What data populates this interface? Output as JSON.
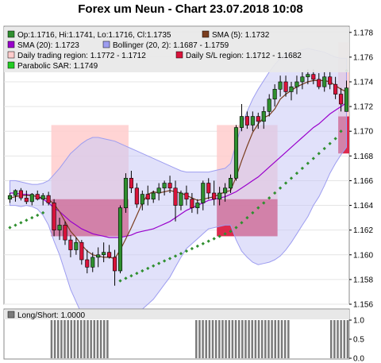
{
  "title": "Forex um Neun - Chart 23.07.2018 10:08",
  "colors": {
    "up_candle": "#2f8f2f",
    "down_candle": "#d9133a",
    "sma5": "#7a3e1f",
    "sma20": "#9900cc",
    "bollinger_fill": "#c8c8f5",
    "bollinger_stroke": "#9d9df0",
    "daily_region": "#ffcccc",
    "sl_region": "#d9133a",
    "sar": "#2f8f2f",
    "panel_bg": "#e8e8e8",
    "bar_gray": "#7a7a7a"
  },
  "legend": {
    "ohlc": "Op:1.1716, Hi:1.1741, Lo:1.1716, Cl:1.1735",
    "sma5": "SMA (5): 1.1732",
    "sma20": "SMA (20): 1.1723",
    "bollinger": "Bollinger (20, 2): 1.1687 - 1.1759",
    "daily_region": "Daily trading region: 1.1772 - 1.1712",
    "sl_region": "Daily S/L region: 1.1712 - 1.1682",
    "sar": "Parabolic SAR: 1.1749"
  },
  "lower_legend": "Long/Short: 1.0000",
  "chart_data": [
    {
      "type": "candlestick",
      "title": "Forex um Neun - Chart 23.07.2018 10:08",
      "ylim": [
        1.156,
        1.1785
      ],
      "y_ticks": [
        "1.178",
        "1.176",
        "1.174",
        "1.172",
        "1.170",
        "1.168",
        "1.166",
        "1.164",
        "1.162",
        "1.160",
        "1.158",
        "1.156"
      ],
      "candles": [
        {
          "o": 1.1645,
          "h": 1.165,
          "l": 1.1642,
          "c": 1.1648
        },
        {
          "o": 1.1648,
          "h": 1.1653,
          "l": 1.1643,
          "c": 1.1652
        },
        {
          "o": 1.1652,
          "h": 1.1654,
          "l": 1.1644,
          "c": 1.1646
        },
        {
          "o": 1.1646,
          "h": 1.1652,
          "l": 1.1641,
          "c": 1.1643
        },
        {
          "o": 1.1643,
          "h": 1.165,
          "l": 1.164,
          "c": 1.1649
        },
        {
          "o": 1.1649,
          "h": 1.1652,
          "l": 1.1644,
          "c": 1.1645
        },
        {
          "o": 1.1645,
          "h": 1.165,
          "l": 1.164,
          "c": 1.1648
        },
        {
          "o": 1.1648,
          "h": 1.1651,
          "l": 1.164,
          "c": 1.1642
        },
        {
          "o": 1.1642,
          "h": 1.1645,
          "l": 1.1615,
          "c": 1.162
        },
        {
          "o": 1.162,
          "h": 1.163,
          "l": 1.1612,
          "c": 1.1624
        },
        {
          "o": 1.1624,
          "h": 1.1627,
          "l": 1.1608,
          "c": 1.1612
        },
        {
          "o": 1.1612,
          "h": 1.1616,
          "l": 1.1598,
          "c": 1.1604
        },
        {
          "o": 1.1604,
          "h": 1.1614,
          "l": 1.16,
          "c": 1.161
        },
        {
          "o": 1.161,
          "h": 1.1612,
          "l": 1.1592,
          "c": 1.1596
        },
        {
          "o": 1.1596,
          "h": 1.1604,
          "l": 1.1585,
          "c": 1.159
        },
        {
          "o": 1.159,
          "h": 1.1602,
          "l": 1.1586,
          "c": 1.1598
        },
        {
          "o": 1.1598,
          "h": 1.1606,
          "l": 1.159,
          "c": 1.16
        },
        {
          "o": 1.16,
          "h": 1.161,
          "l": 1.1594,
          "c": 1.1602
        },
        {
          "o": 1.1602,
          "h": 1.1608,
          "l": 1.1597,
          "c": 1.1598
        },
        {
          "o": 1.1598,
          "h": 1.1604,
          "l": 1.1575,
          "c": 1.1587
        },
        {
          "o": 1.1587,
          "h": 1.164,
          "l": 1.1585,
          "c": 1.1638
        },
        {
          "o": 1.1638,
          "h": 1.1666,
          "l": 1.1634,
          "c": 1.1662
        },
        {
          "o": 1.1662,
          "h": 1.1668,
          "l": 1.165,
          "c": 1.1654
        },
        {
          "o": 1.1654,
          "h": 1.1658,
          "l": 1.1638,
          "c": 1.1641
        },
        {
          "o": 1.1641,
          "h": 1.1652,
          "l": 1.1636,
          "c": 1.1649
        },
        {
          "o": 1.1649,
          "h": 1.1656,
          "l": 1.164,
          "c": 1.1645
        },
        {
          "o": 1.1645,
          "h": 1.1652,
          "l": 1.1642,
          "c": 1.165
        },
        {
          "o": 1.165,
          "h": 1.1658,
          "l": 1.1644,
          "c": 1.1654
        },
        {
          "o": 1.1654,
          "h": 1.166,
          "l": 1.1648,
          "c": 1.1658
        },
        {
          "o": 1.1658,
          "h": 1.1664,
          "l": 1.165,
          "c": 1.1654
        },
        {
          "o": 1.1654,
          "h": 1.166,
          "l": 1.1627,
          "c": 1.164
        },
        {
          "o": 1.164,
          "h": 1.1652,
          "l": 1.1636,
          "c": 1.165
        },
        {
          "o": 1.165,
          "h": 1.1656,
          "l": 1.164,
          "c": 1.1645
        },
        {
          "o": 1.1645,
          "h": 1.165,
          "l": 1.1634,
          "c": 1.1638
        },
        {
          "o": 1.1638,
          "h": 1.1645,
          "l": 1.1633,
          "c": 1.1642
        },
        {
          "o": 1.1642,
          "h": 1.166,
          "l": 1.1636,
          "c": 1.1658
        },
        {
          "o": 1.1658,
          "h": 1.1662,
          "l": 1.1645,
          "c": 1.165
        },
        {
          "o": 1.165,
          "h": 1.166,
          "l": 1.164,
          "c": 1.1645
        },
        {
          "o": 1.1645,
          "h": 1.1655,
          "l": 1.164,
          "c": 1.165
        },
        {
          "o": 1.165,
          "h": 1.1658,
          "l": 1.1643,
          "c": 1.1654
        },
        {
          "o": 1.1654,
          "h": 1.1665,
          "l": 1.165,
          "c": 1.1662
        },
        {
          "o": 1.1662,
          "h": 1.1705,
          "l": 1.166,
          "c": 1.1703
        },
        {
          "o": 1.1703,
          "h": 1.1722,
          "l": 1.17,
          "c": 1.1712
        },
        {
          "o": 1.1712,
          "h": 1.1716,
          "l": 1.1702,
          "c": 1.1705
        },
        {
          "o": 1.1705,
          "h": 1.1716,
          "l": 1.17,
          "c": 1.1712
        },
        {
          "o": 1.1712,
          "h": 1.1715,
          "l": 1.1702,
          "c": 1.1708
        },
        {
          "o": 1.1708,
          "h": 1.172,
          "l": 1.1702,
          "c": 1.1716
        },
        {
          "o": 1.1716,
          "h": 1.173,
          "l": 1.1712,
          "c": 1.1726
        },
        {
          "o": 1.1726,
          "h": 1.1738,
          "l": 1.172,
          "c": 1.1734
        },
        {
          "o": 1.1734,
          "h": 1.1745,
          "l": 1.1728,
          "c": 1.174
        },
        {
          "o": 1.174,
          "h": 1.1745,
          "l": 1.1728,
          "c": 1.1732
        },
        {
          "o": 1.1732,
          "h": 1.174,
          "l": 1.1725,
          "c": 1.1736
        },
        {
          "o": 1.1736,
          "h": 1.1745,
          "l": 1.173,
          "c": 1.174
        },
        {
          "o": 1.174,
          "h": 1.1748,
          "l": 1.1734,
          "c": 1.1744
        },
        {
          "o": 1.1744,
          "h": 1.175,
          "l": 1.1738,
          "c": 1.1746
        },
        {
          "o": 1.1746,
          "h": 1.175,
          "l": 1.1738,
          "c": 1.1742
        },
        {
          "o": 1.1742,
          "h": 1.1747,
          "l": 1.1734,
          "c": 1.1736
        },
        {
          "o": 1.1736,
          "h": 1.1748,
          "l": 1.1732,
          "c": 1.1744
        },
        {
          "o": 1.1744,
          "h": 1.1749,
          "l": 1.1734,
          "c": 1.1738
        },
        {
          "o": 1.1738,
          "h": 1.1744,
          "l": 1.1726,
          "c": 1.173
        },
        {
          "o": 1.173,
          "h": 1.1735,
          "l": 1.1716,
          "c": 1.1722
        },
        {
          "o": 1.1716,
          "h": 1.1741,
          "l": 1.1716,
          "c": 1.1735
        }
      ],
      "sma5": [
        1.1646,
        1.1647,
        1.1648,
        1.1648,
        1.1648,
        1.1647,
        1.1646,
        1.1645,
        1.1641,
        1.1635,
        1.1627,
        1.1619,
        1.1614,
        1.1608,
        1.1603,
        1.16,
        1.1599,
        1.1598,
        1.1598,
        1.1597,
        1.1604,
        1.1613,
        1.1622,
        1.1632,
        1.1642,
        1.1649,
        1.1651,
        1.165,
        1.1651,
        1.1652,
        1.1651,
        1.165,
        1.1648,
        1.1646,
        1.1644,
        1.1645,
        1.1646,
        1.1647,
        1.1649,
        1.1651,
        1.1652,
        1.1663,
        1.1676,
        1.1688,
        1.1699,
        1.1706,
        1.1711,
        1.1713,
        1.1718,
        1.1726,
        1.173,
        1.1733,
        1.1736,
        1.1738,
        1.174,
        1.1741,
        1.1741,
        1.1741,
        1.174,
        1.1737,
        1.1734,
        1.1732
      ],
      "sma20": [
        1.165,
        1.165,
        1.1649,
        1.1649,
        1.1648,
        1.1647,
        1.1645,
        1.1642,
        1.1638,
        1.1635,
        1.1631,
        1.1627,
        1.1624,
        1.1621,
        1.1619,
        1.1617,
        1.1616,
        1.1615,
        1.1614,
        1.1614,
        1.1614,
        1.1615,
        1.1616,
        1.1618,
        1.1619,
        1.162,
        1.1621,
        1.1623,
        1.1625,
        1.1627,
        1.163,
        1.1633,
        1.1636,
        1.1638,
        1.164,
        1.1642,
        1.1644,
        1.1645,
        1.1646,
        1.1647,
        1.1649,
        1.1651,
        1.1654,
        1.1657,
        1.166,
        1.1663,
        1.1667,
        1.1671,
        1.1675,
        1.1679,
        1.1683,
        1.1687,
        1.1691,
        1.1695,
        1.1699,
        1.1703,
        1.1706,
        1.171,
        1.1714,
        1.1717,
        1.172,
        1.1723
      ],
      "bollinger_upper": [
        1.166,
        1.166,
        1.1659,
        1.1658,
        1.1657,
        1.1657,
        1.1658,
        1.166,
        1.1665,
        1.167,
        1.1676,
        1.1682,
        1.1686,
        1.169,
        1.1693,
        1.1695,
        1.1695,
        1.1694,
        1.1693,
        1.1692,
        1.169,
        1.1688,
        1.1686,
        1.1684,
        1.1682,
        1.168,
        1.1678,
        1.1676,
        1.1674,
        1.1672,
        1.167,
        1.1668,
        1.1667,
        1.1667,
        1.1667,
        1.1667,
        1.1667,
        1.1668,
        1.1669,
        1.167,
        1.1674,
        1.169,
        1.1705,
        1.1716,
        1.1726,
        1.1734,
        1.1741,
        1.1748,
        1.1754,
        1.1759,
        1.1762,
        1.1764,
        1.1765,
        1.1766,
        1.1767,
        1.1766,
        1.1765,
        1.1764,
        1.1762,
        1.176,
        1.1759,
        1.1759
      ],
      "bollinger_lower": [
        1.164,
        1.164,
        1.1639,
        1.164,
        1.1639,
        1.1637,
        1.1632,
        1.1624,
        1.1611,
        1.16,
        1.1586,
        1.1572,
        1.1562,
        1.1552,
        1.1545,
        1.1539,
        1.1537,
        1.1536,
        1.1535,
        1.1536,
        1.1538,
        1.1542,
        1.1546,
        1.1552,
        1.1556,
        1.156,
        1.1564,
        1.157,
        1.1576,
        1.1582,
        1.159,
        1.1598,
        1.1605,
        1.1609,
        1.1613,
        1.1617,
        1.1621,
        1.1622,
        1.1623,
        1.1624,
        1.1624,
        1.1612,
        1.1603,
        1.1598,
        1.1594,
        1.1592,
        1.1593,
        1.1594,
        1.1596,
        1.1599,
        1.1604,
        1.161,
        1.1617,
        1.1624,
        1.1631,
        1.164,
        1.1647,
        1.1656,
        1.1666,
        1.1674,
        1.1681,
        1.1687
      ],
      "sar": [
        1.1622,
        1.1624,
        1.1626,
        1.1628,
        1.163,
        1.1632,
        1.1634,
        null,
        null,
        null,
        null,
        null,
        null,
        null,
        null,
        null,
        null,
        null,
        null,
        null,
        1.1579,
        1.1581,
        1.1583,
        1.1585,
        1.1587,
        1.1589,
        1.1591,
        1.1593,
        1.1595,
        1.1597,
        1.1599,
        1.1601,
        1.1603,
        1.1605,
        1.1607,
        1.1609,
        1.1611,
        1.1613,
        1.1615,
        1.1617,
        1.1619,
        1.1622,
        1.1626,
        1.163,
        1.1634,
        1.1638,
        1.1642,
        1.1646,
        1.165,
        1.1654,
        1.1658,
        1.1662,
        1.1666,
        1.167,
        1.1674,
        1.1678,
        1.1682,
        1.1686,
        1.169,
        1.1694,
        1.17,
        1.1749
      ],
      "regions": [
        {
          "x0": 8,
          "x1": 22,
          "upper": [
            1.1705,
            1.1645
          ],
          "lower": [
            1.1645,
            1.1615
          ]
        },
        {
          "x0": 38,
          "x1": 49,
          "upper": [
            1.1705,
            1.1645
          ],
          "lower": [
            1.1645,
            1.1615
          ]
        },
        {
          "x0": 60,
          "x1": 62,
          "upper": [
            1.1772,
            1.1712
          ],
          "lower": [
            1.1712,
            1.1682
          ]
        }
      ]
    },
    {
      "type": "bar",
      "title": "Long/Short: 1.0000",
      "ylim": [
        0,
        1
      ],
      "y_ticks": [
        "1.0",
        "0.5",
        "0.0"
      ],
      "values": [
        0,
        0,
        0,
        0,
        0,
        0,
        0,
        0,
        0,
        0,
        0,
        0,
        0,
        1,
        1,
        1,
        1,
        1,
        1,
        1,
        1,
        1,
        1,
        1,
        1,
        1,
        1,
        1,
        1,
        1,
        1,
        0,
        0,
        0,
        0,
        0,
        0,
        0,
        0,
        0,
        0,
        0,
        0,
        0,
        0,
        0,
        0,
        0,
        0,
        0,
        0,
        0,
        0,
        0,
        0,
        0,
        0,
        1,
        1,
        1,
        1,
        1,
        1,
        1,
        1,
        1,
        1,
        1,
        1,
        1,
        1,
        1,
        1,
        1,
        1,
        1,
        1,
        1,
        1,
        1,
        1,
        1,
        1,
        1,
        1,
        1,
        0,
        0,
        0,
        0,
        0,
        0,
        0,
        0,
        0,
        0,
        0,
        0,
        1,
        1,
        1,
        1,
        1,
        1
      ]
    }
  ]
}
